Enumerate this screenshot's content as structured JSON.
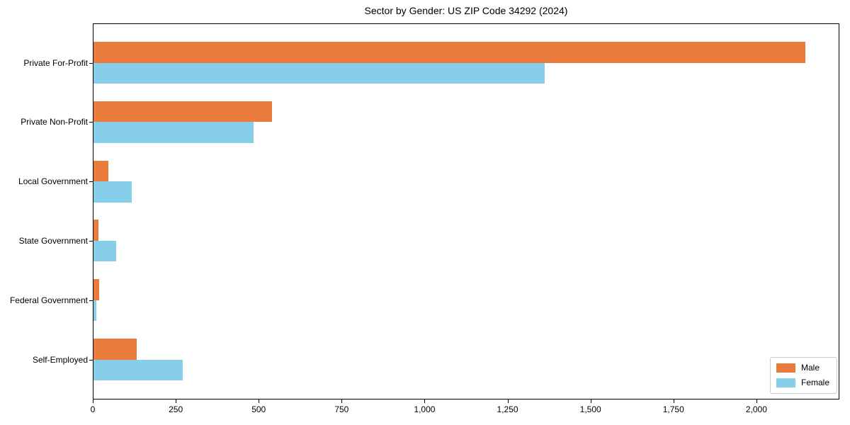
{
  "chart_data": {
    "type": "bar",
    "orientation": "horizontal",
    "title": "Sector by Gender: US ZIP Code 34292 (2024)",
    "categories": [
      "Private For-Profit",
      "Private Non-Profit",
      "Local Government",
      "State Government",
      "Federal Government",
      "Self-Employed"
    ],
    "series": [
      {
        "name": "Male",
        "color": "#e97c3c",
        "values": [
          2145,
          538,
          45,
          14,
          17,
          131
        ]
      },
      {
        "name": "Female",
        "color": "#87ceeb",
        "values": [
          1360,
          482,
          115,
          68,
          9,
          269
        ]
      }
    ],
    "xlabel": "",
    "ylabel": "",
    "xlim": [
      0,
      2250
    ],
    "xticks": [
      0,
      250,
      500,
      750,
      1000,
      1250,
      1500,
      1750,
      2000
    ],
    "xtick_labels": [
      "0",
      "250",
      "500",
      "750",
      "1,000",
      "1,250",
      "1,500",
      "1,750",
      "2,000"
    ],
    "grid": false,
    "legend_position": "lower right"
  }
}
